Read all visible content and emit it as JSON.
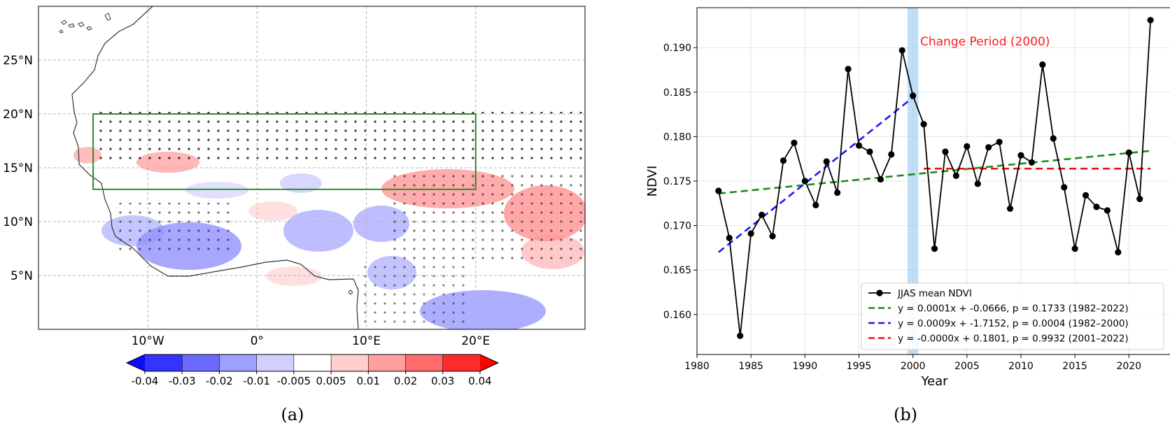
{
  "panel_a": {
    "caption": "(a)",
    "lon_ticks": [
      {
        "value": -10,
        "label": "10°W"
      },
      {
        "value": 0,
        "label": "0°"
      },
      {
        "value": 10,
        "label": "10°E"
      },
      {
        "value": 20,
        "label": "20°E"
      }
    ],
    "lat_ticks": [
      {
        "value": 5,
        "label": "5°N"
      },
      {
        "value": 10,
        "label": "10°N"
      },
      {
        "value": 15,
        "label": "15°N"
      },
      {
        "value": 20,
        "label": "20°N"
      },
      {
        "value": 25,
        "label": "25°N"
      }
    ],
    "extent": {
      "lon_min": -20,
      "lon_max": 30,
      "lat_min": 0,
      "lat_max": 30
    },
    "study_box": {
      "lon_min": -15,
      "lon_max": 20,
      "lat_min": 13,
      "lat_max": 20,
      "color": "#2e8b2e"
    },
    "colorbar": {
      "levels": [
        "-0.04",
        "-0.03",
        "-0.02",
        "-0.01",
        "-0.005",
        "0.005",
        "0.01",
        "0.02",
        "0.03",
        "0.04"
      ],
      "colors": [
        "#3434ff",
        "#6a6aff",
        "#9f9fff",
        "#d0d0ff",
        "#ffffff",
        "#ffcfcf",
        "#ff9f9f",
        "#ff6a6a",
        "#ff2a2a"
      ],
      "extend_low": "#0b0bff",
      "extend_high": "#ff0000"
    }
  },
  "panel_b": {
    "caption": "(b)",
    "change_label": "Change Period (2000)",
    "legend": [
      {
        "label": "JJAS mean NDVI",
        "color": "#000000",
        "style": "marker-line"
      },
      {
        "label": "y = 0.0001x + -0.0666, p = 0.1733 (1982–2022)",
        "color": "#1a8a1a",
        "style": "dashed"
      },
      {
        "label": "y = 0.0009x + -1.7152, p = 0.0004 (1982–2000)",
        "color": "#1a1af0",
        "style": "dashed"
      },
      {
        "label": "y = -0.0000x + 0.1801, p = 0.9932 (2001–2022)",
        "color": "#ee1111",
        "style": "dashed"
      }
    ]
  },
  "chart_data": [
    {
      "type": "heatmap",
      "title": "",
      "xlabel": "",
      "ylabel": "",
      "x_ticks": [
        "10°W",
        "0°",
        "10°E",
        "20°E"
      ],
      "y_ticks": [
        "5°N",
        "10°N",
        "15°N",
        "20°N",
        "25°N"
      ],
      "colorbar_levels": [
        -0.04,
        -0.03,
        -0.02,
        -0.01,
        -0.005,
        0.005,
        0.01,
        0.02,
        0.03,
        0.04
      ]
    },
    {
      "type": "line",
      "xlabel": "Year",
      "ylabel": "NDVI",
      "xlim": [
        1980,
        2024
      ],
      "ylim": [
        0.1555,
        0.1945
      ],
      "x_ticks": [
        1980,
        1985,
        1990,
        1995,
        2000,
        2005,
        2010,
        2015,
        2020
      ],
      "y_ticks": [
        0.16,
        0.165,
        0.17,
        0.175,
        0.18,
        0.185,
        0.19
      ],
      "y_tick_labels": [
        "0.160",
        "0.165",
        "0.170",
        "0.175",
        "0.180",
        "0.185",
        "0.190"
      ],
      "grid": true,
      "legend_position": "lower-right",
      "change_year": 2000,
      "series": [
        {
          "name": "JJAS mean NDVI",
          "x": [
            1982,
            1983,
            1984,
            1985,
            1986,
            1987,
            1988,
            1989,
            1990,
            1991,
            1992,
            1993,
            1994,
            1995,
            1996,
            1997,
            1998,
            1999,
            2000,
            2001,
            2002,
            2003,
            2004,
            2005,
            2006,
            2007,
            2008,
            2009,
            2010,
            2011,
            2012,
            2013,
            2014,
            2015,
            2016,
            2017,
            2018,
            2019,
            2020,
            2021,
            2022
          ],
          "values": [
            0.1739,
            0.1686,
            0.1576,
            0.1691,
            0.1712,
            0.1688,
            0.1773,
            0.1793,
            0.175,
            0.1723,
            0.1772,
            0.1737,
            0.1876,
            0.179,
            0.1783,
            0.1752,
            0.178,
            0.1897,
            0.1846,
            0.1814,
            0.1674,
            0.1783,
            0.1756,
            0.1789,
            0.1747,
            0.1788,
            0.1794,
            0.1719,
            0.1779,
            0.1771,
            0.1881,
            0.1798,
            0.1743,
            0.1674,
            0.1734,
            0.1721,
            0.1717,
            0.167,
            0.1782,
            0.173,
            0.1931
          ]
        }
      ],
      "trend_lines": [
        {
          "name": "y = 0.0001x + -0.0666, p = 0.1733 (1982–2022)",
          "x": [
            1982,
            2022
          ],
          "y": [
            0.1736,
            0.1784
          ]
        },
        {
          "name": "y = 0.0009x + -1.7152, p = 0.0004 (1982–2000)",
          "x": [
            1982,
            2000
          ],
          "y": [
            0.167,
            0.1844
          ]
        },
        {
          "name": "y = -0.0000x + 0.1801, p = 0.9932 (2001–2022)",
          "x": [
            2001,
            2022
          ],
          "y": [
            0.1764,
            0.1764
          ]
        }
      ]
    }
  ]
}
